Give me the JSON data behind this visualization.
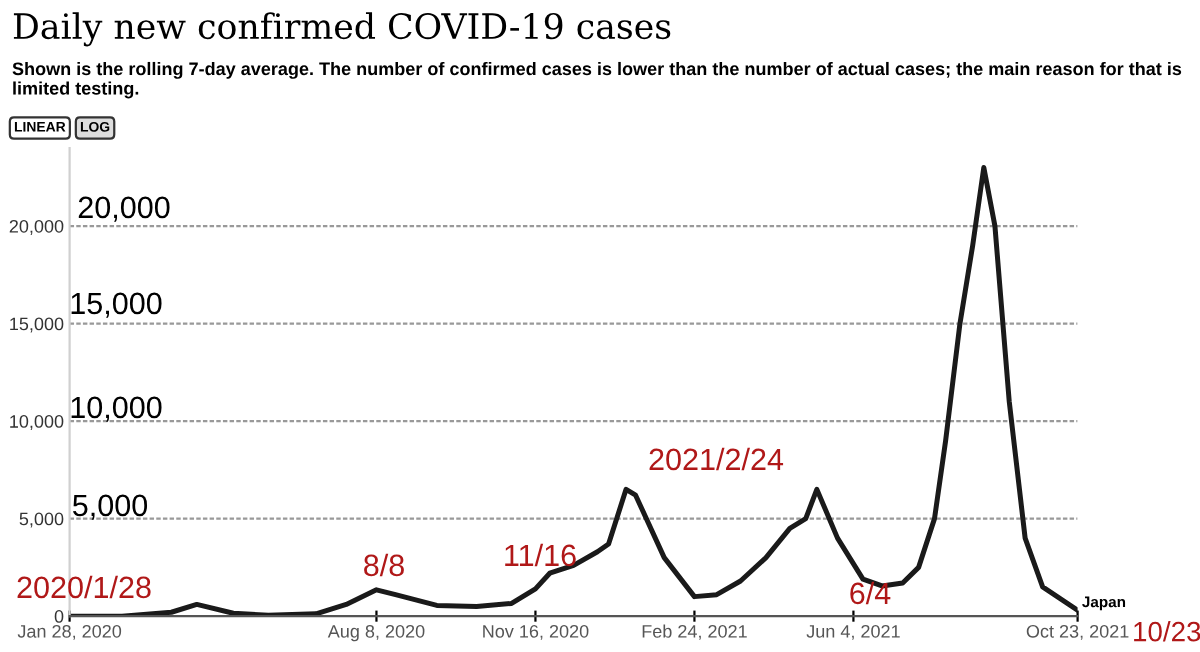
{
  "chart_data": {
    "type": "line",
    "title": "Daily new confirmed COVID-19 cases",
    "subtitle": "Shown is the rolling 7-day average. The number of confirmed cases is lower than the number of actual cases; the main reason for that is limited testing.",
    "annotations": [
      "LINEAR",
      "LOG",
      "20,000",
      "15,000",
      "10,000",
      "5,000",
      "2020/1/28",
      "8/8",
      "11/16",
      "2021/2/24",
      "6/4",
      "10/23"
    ],
    "series": [
      {
        "name": "Japan",
        "color": "#1a1a1a",
        "x": [
          "2020-01-28",
          "2020-03-01",
          "2020-04-01",
          "2020-04-17",
          "2020-05-10",
          "2020-06-01",
          "2020-07-01",
          "2020-07-20",
          "2020-08-08",
          "2020-08-20",
          "2020-09-15",
          "2020-10-10",
          "2020-11-01",
          "2020-11-16",
          "2020-11-25",
          "2020-12-10",
          "2020-12-25",
          "2021-01-01",
          "2021-01-12",
          "2021-01-18",
          "2021-02-05",
          "2021-02-24",
          "2021-03-10",
          "2021-03-25",
          "2021-04-10",
          "2021-04-25",
          "2021-05-05",
          "2021-05-12",
          "2021-05-25",
          "2021-06-10",
          "2021-06-22",
          "2021-07-05",
          "2021-07-15",
          "2021-07-25",
          "2021-08-01",
          "2021-08-10",
          "2021-08-18",
          "2021-08-25",
          "2021-09-01",
          "2021-09-10",
          "2021-09-20",
          "2021-10-01",
          "2021-10-23"
        ],
        "values": [
          0,
          0,
          200,
          600,
          150,
          40,
          120,
          600,
          1350,
          1100,
          550,
          500,
          650,
          1400,
          2200,
          2600,
          3300,
          3700,
          6500,
          6200,
          3000,
          1000,
          1100,
          1800,
          3000,
          4500,
          5000,
          6500,
          4000,
          1900,
          1550,
          1700,
          2500,
          5000,
          9000,
          15000,
          19000,
          23000,
          20000,
          11000,
          4000,
          1500,
          300
        ]
      }
    ],
    "xlim": [
      "2020-01-28",
      "2021-10-23"
    ],
    "xticks": [
      {
        "value": "2020-01-28",
        "label": "Jan 28, 2020"
      },
      {
        "value": "2020-08-08",
        "label": "Aug 8, 2020"
      },
      {
        "value": "2020-11-16",
        "label": "Nov 16, 2020"
      },
      {
        "value": "2021-02-24",
        "label": "Feb 24, 2021"
      },
      {
        "value": "2021-06-04",
        "label": "Jun 4, 2021"
      },
      {
        "value": "2021-10-23",
        "label": "Oct 23, 2021"
      }
    ],
    "ylim": [
      0,
      24000
    ],
    "yticks": [
      0,
      {
        "value": 5000,
        "label": "5,000"
      },
      {
        "value": 10000,
        "label": "10,000"
      },
      {
        "value": 15000,
        "label": "15,000"
      },
      {
        "value": 20000,
        "label": "20,000"
      }
    ],
    "grid": "y",
    "line_style": "solid"
  }
}
